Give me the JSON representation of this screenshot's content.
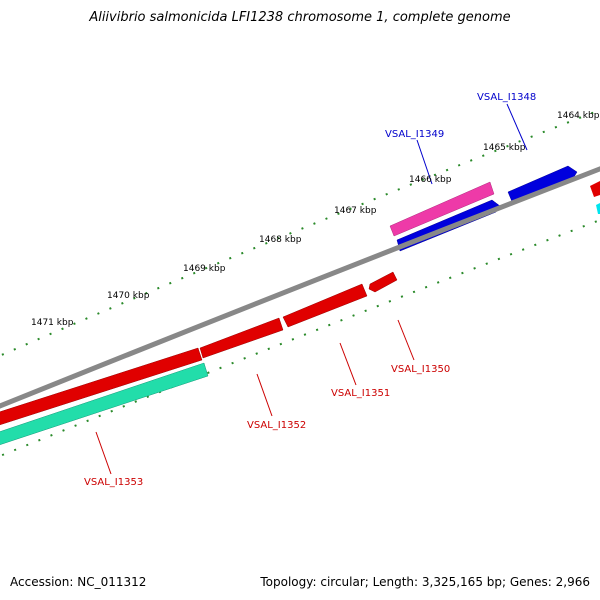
{
  "title": "Aliivibrio salmonicida LFI1238 chromosome 1, complete genome",
  "footer": {
    "accession": "Accession: NC_011312",
    "stats": "Topology: circular; Length: 3,325,165 bp; Genes: 2,966"
  },
  "colors": {
    "backbone": "#888888",
    "ticks": "#2a8a2a",
    "forward_red": "#e00000",
    "reverse_blue": "#0000dd",
    "magenta": "#ee3aa8",
    "teal": "#22ddaa",
    "cyan": "#00e5ee"
  },
  "kbp_labels": [
    {
      "name": "1464-kbp",
      "text": "1464 kbp"
    },
    {
      "name": "1465-kbp",
      "text": "1465 kbp"
    },
    {
      "name": "1466-kbp",
      "text": "1466 kbp"
    },
    {
      "name": "1467-kbp",
      "text": "1467 kbp"
    },
    {
      "name": "1468-kbp",
      "text": "1468 kbp"
    },
    {
      "name": "1469-kbp",
      "text": "1469 kbp"
    },
    {
      "name": "1470-kbp",
      "text": "1470 kbp"
    },
    {
      "name": "1471-kbp",
      "text": "1471 kbp"
    }
  ],
  "gene_labels": [
    {
      "name": "vsal-i1348",
      "text": "VSAL_I1348",
      "color": "#0000cc"
    },
    {
      "name": "vsal-i1349",
      "text": "VSAL_I1349",
      "color": "#0000cc"
    },
    {
      "name": "vsal-i1350",
      "text": "VSAL_I1350",
      "color": "#cc0000"
    },
    {
      "name": "vsal-i1351",
      "text": "VSAL_I1351",
      "color": "#cc0000"
    },
    {
      "name": "vsal-i1352",
      "text": "VSAL_I1352",
      "color": "#cc0000"
    },
    {
      "name": "vsal-i1353",
      "text": "VSAL_I1353",
      "color": "#cc0000"
    }
  ]
}
